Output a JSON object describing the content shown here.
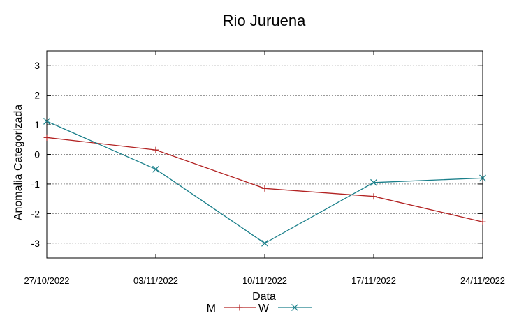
{
  "chart_data": {
    "type": "line",
    "title": "Rio Juruena",
    "xlabel": "Data",
    "ylabel": "Anomalia Categorizada",
    "categories": [
      "27/10/2022",
      "03/11/2022",
      "10/11/2022",
      "17/11/2022",
      "24/11/2022"
    ],
    "yticks": [
      "3",
      "2",
      "1",
      "0",
      "-1",
      "-2",
      "-3"
    ],
    "ylim": [
      -3.5,
      3.5
    ],
    "grid": true,
    "legend_position": "bottom",
    "series": [
      {
        "name": "M",
        "color": "#b22222",
        "marker": "plus",
        "values": [
          0.57,
          0.15,
          -1.15,
          -1.42,
          -2.28
        ]
      },
      {
        "name": "W",
        "color": "#1a7f8a",
        "marker": "cross",
        "values": [
          1.12,
          -0.5,
          -3.0,
          -0.95,
          -0.8
        ]
      }
    ]
  }
}
